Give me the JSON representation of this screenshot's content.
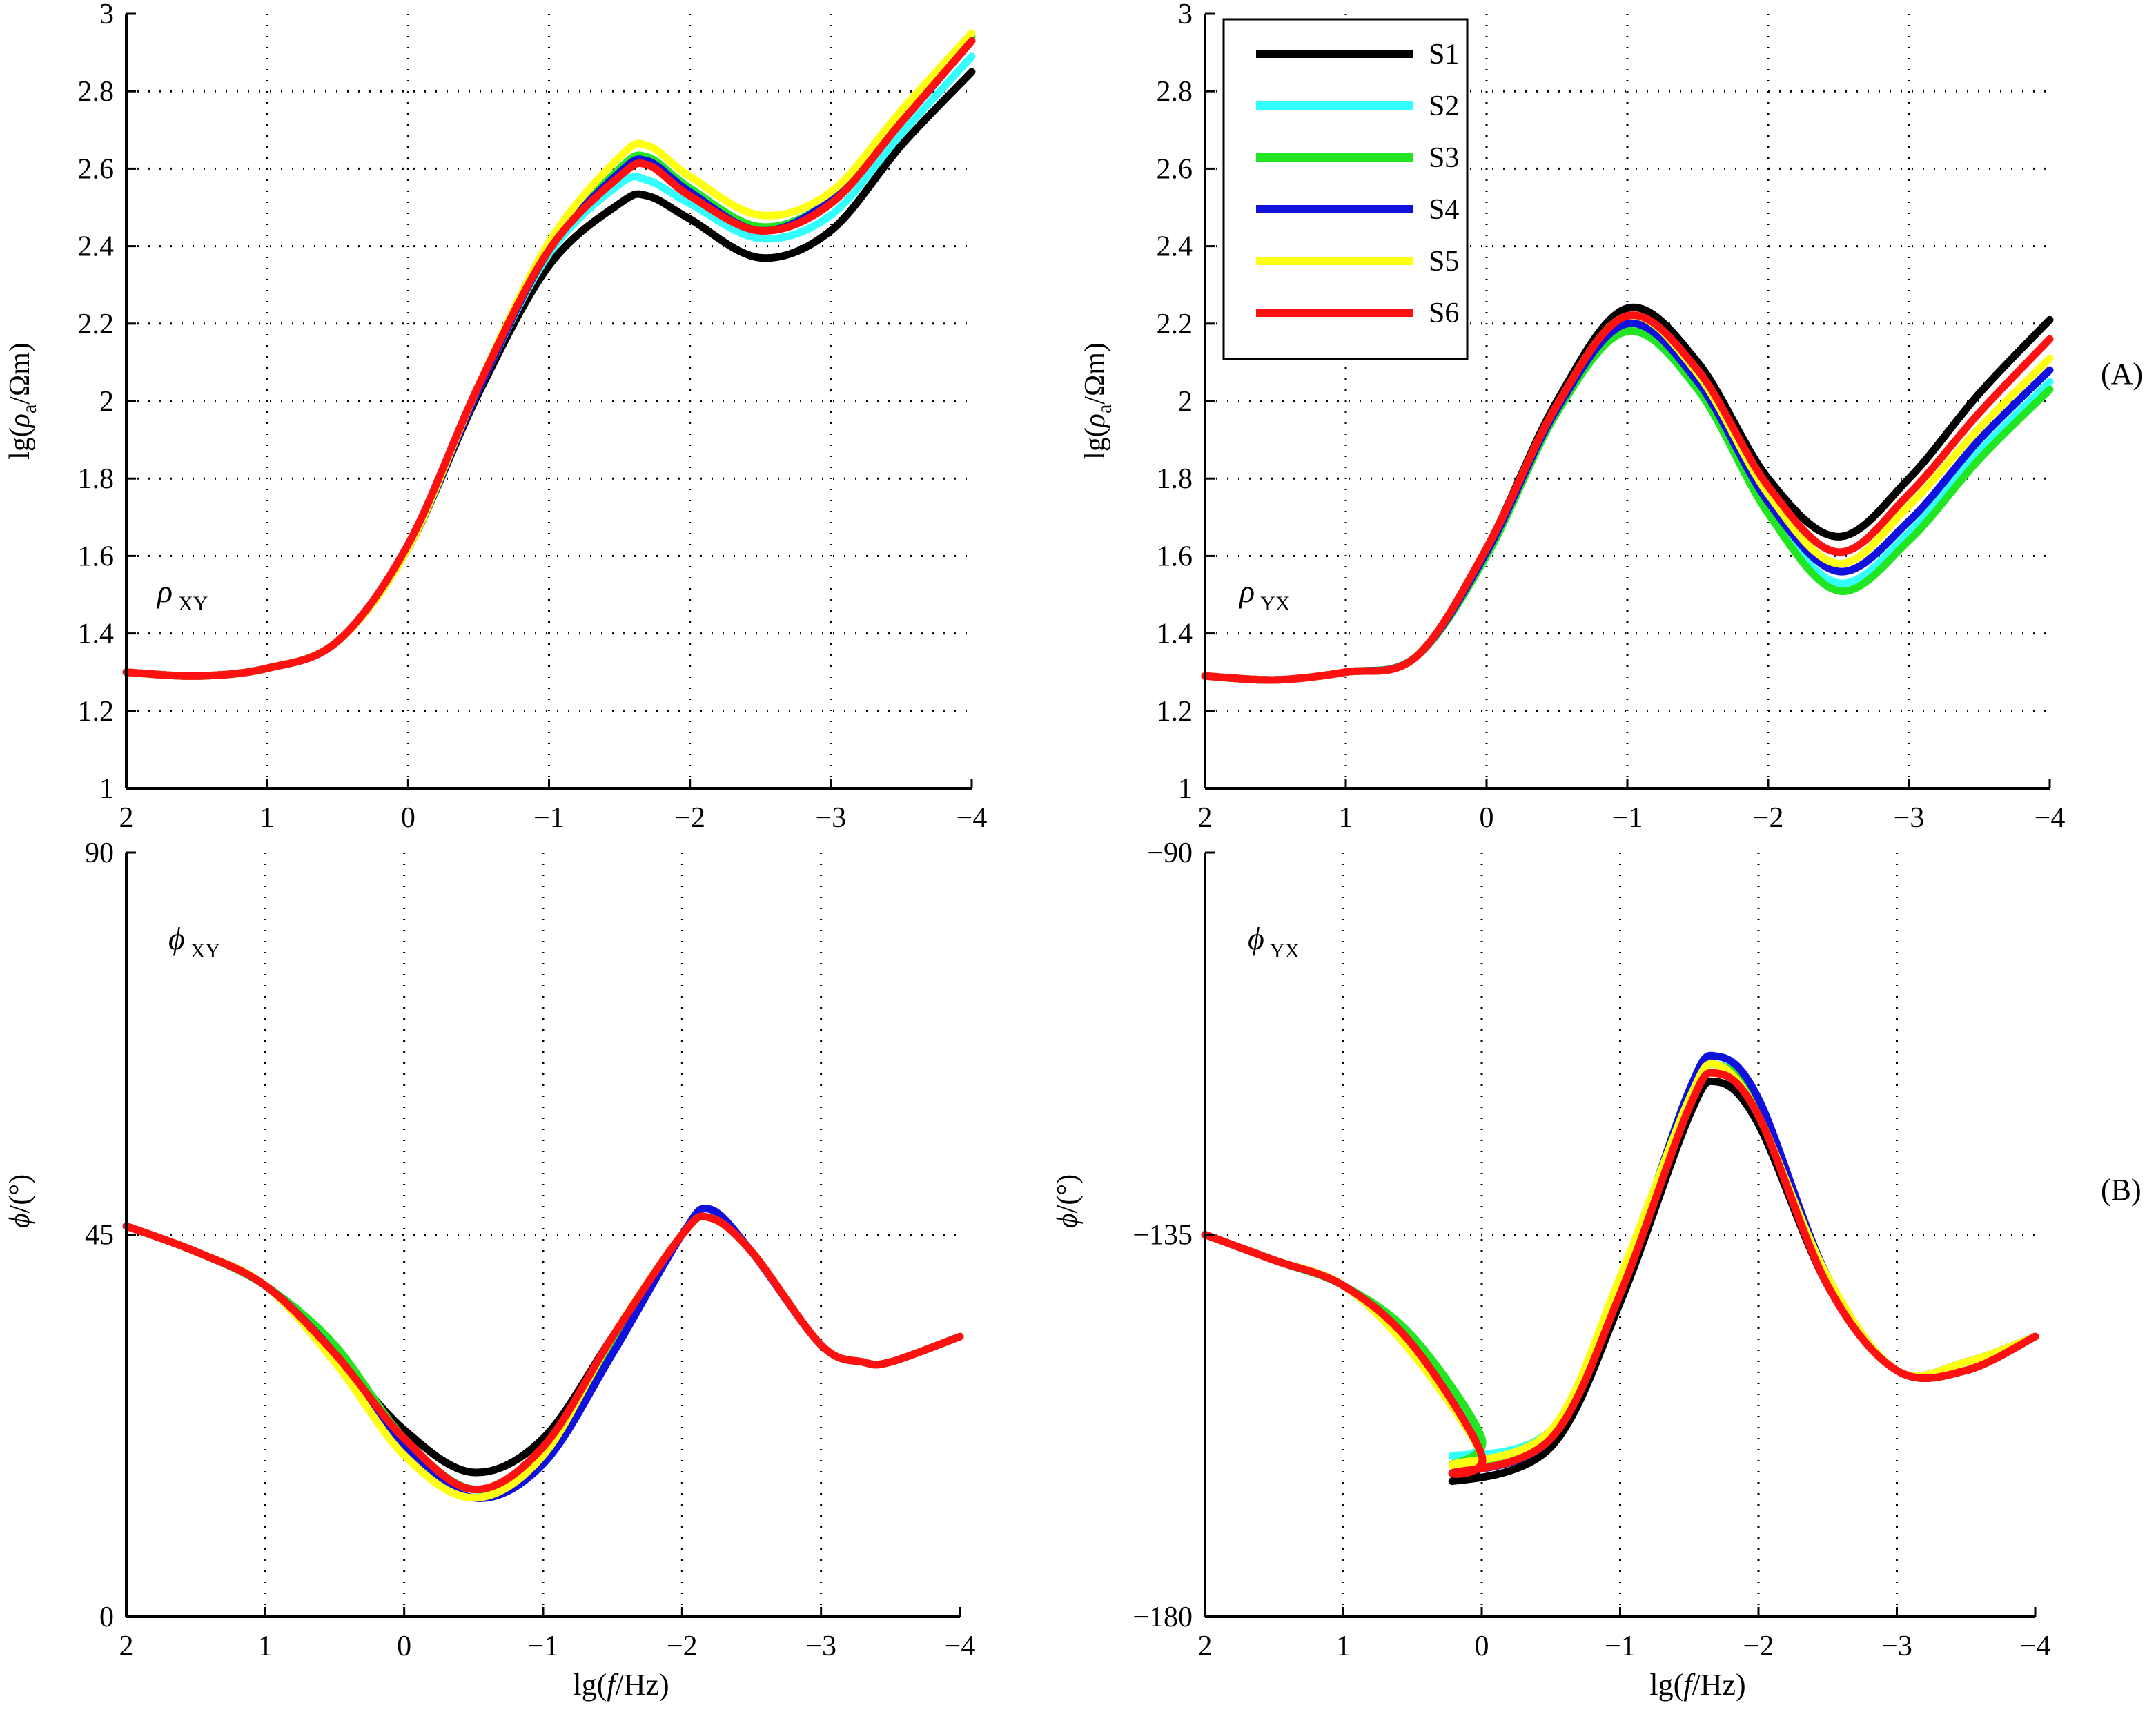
{
  "figure": {
    "panel_labels": {
      "A": "(A)",
      "B": "(B)"
    }
  },
  "colors": {
    "S1": "#000000",
    "S2": "#33ffff",
    "S3": "#22e622",
    "S4": "#1111dd",
    "S5": "#ffff11",
    "S6": "#ff1111"
  },
  "chart_data": [
    {
      "id": "rho_xy",
      "type": "line",
      "plot_label": {
        "symbol": "ρ",
        "sub": "XY"
      },
      "ylabel_parts": [
        "lg(",
        "ρ",
        "a",
        "/Ωm)"
      ],
      "xlabel": "",
      "xlim": [
        2,
        -4
      ],
      "ylim": [
        1,
        3
      ],
      "grid": true,
      "xticks": [
        2,
        1,
        0,
        -1,
        -2,
        -3,
        -4
      ],
      "xtick_labels": [
        "2",
        "1",
        "0",
        "−1",
        "−2",
        "−3",
        "−4"
      ],
      "yticks": [
        1,
        1.2,
        1.4,
        1.6,
        1.8,
        2,
        2.2,
        2.4,
        2.6,
        2.8,
        3
      ],
      "ytick_labels": [
        "1",
        "1.2",
        "1.4",
        "1.6",
        "1.8",
        "2",
        "2.2",
        "2.4",
        "2.6",
        "2.8",
        "3"
      ],
      "x": [
        2,
        1.5,
        1,
        0.5,
        0,
        -0.5,
        -1,
        -1.5,
        -1.7,
        -2,
        -2.5,
        -3,
        -3.5,
        -4
      ],
      "series": [
        {
          "name": "S1",
          "values": [
            1.3,
            1.29,
            1.31,
            1.38,
            1.62,
            2.02,
            2.35,
            2.51,
            2.53,
            2.47,
            2.37,
            2.44,
            2.66,
            2.85
          ]
        },
        {
          "name": "S2",
          "values": [
            1.3,
            1.29,
            1.31,
            1.38,
            1.62,
            2.03,
            2.38,
            2.56,
            2.57,
            2.51,
            2.42,
            2.48,
            2.69,
            2.89
          ]
        },
        {
          "name": "S3",
          "values": [
            1.3,
            1.29,
            1.31,
            1.38,
            1.62,
            2.03,
            2.39,
            2.6,
            2.63,
            2.55,
            2.45,
            2.52,
            2.73,
            2.94
          ]
        },
        {
          "name": "S4",
          "values": [
            1.3,
            1.29,
            1.31,
            1.38,
            1.62,
            2.03,
            2.39,
            2.59,
            2.62,
            2.54,
            2.44,
            2.52,
            2.72,
            2.93
          ]
        },
        {
          "name": "S5",
          "values": [
            1.3,
            1.29,
            1.31,
            1.38,
            1.62,
            2.04,
            2.41,
            2.63,
            2.66,
            2.58,
            2.48,
            2.54,
            2.75,
            2.95
          ]
        },
        {
          "name": "S6",
          "values": [
            1.3,
            1.29,
            1.31,
            1.38,
            1.63,
            2.04,
            2.39,
            2.58,
            2.61,
            2.53,
            2.44,
            2.51,
            2.72,
            2.93
          ]
        }
      ]
    },
    {
      "id": "rho_yx",
      "type": "line",
      "plot_label": {
        "symbol": "ρ",
        "sub": "YX"
      },
      "ylabel_parts": [
        "lg(",
        "ρ",
        "a",
        "/Ωm)"
      ],
      "xlabel": "",
      "xlim": [
        2,
        -4
      ],
      "ylim": [
        1,
        3
      ],
      "grid": true,
      "xticks": [
        2,
        1,
        0,
        -1,
        -2,
        -3,
        -4
      ],
      "xtick_labels": [
        "2",
        "1",
        "0",
        "−1",
        "−2",
        "−3",
        "−4"
      ],
      "yticks": [
        1,
        1.2,
        1.4,
        1.6,
        1.8,
        2,
        2.2,
        2.4,
        2.6,
        2.8,
        3
      ],
      "ytick_labels": [
        "1",
        "1.2",
        "1.4",
        "1.6",
        "1.8",
        "2",
        "2.2",
        "2.4",
        "2.6",
        "2.8",
        "3"
      ],
      "x": [
        2,
        1.5,
        1,
        0.5,
        0,
        -0.5,
        -1,
        -1.5,
        -2,
        -2.5,
        -3,
        -3.5,
        -4
      ],
      "series": [
        {
          "name": "S1",
          "values": [
            1.29,
            1.28,
            1.3,
            1.34,
            1.62,
            2.0,
            2.24,
            2.1,
            1.8,
            1.65,
            1.8,
            2.02,
            2.21
          ]
        },
        {
          "name": "S2",
          "values": [
            1.29,
            1.28,
            1.3,
            1.34,
            1.6,
            1.97,
            2.18,
            2.03,
            1.72,
            1.53,
            1.66,
            1.87,
            2.05
          ]
        },
        {
          "name": "S3",
          "values": [
            1.29,
            1.28,
            1.3,
            1.34,
            1.6,
            1.97,
            2.18,
            2.03,
            1.71,
            1.51,
            1.64,
            1.85,
            2.03
          ]
        },
        {
          "name": "S4",
          "values": [
            1.29,
            1.28,
            1.3,
            1.34,
            1.61,
            1.98,
            2.2,
            2.05,
            1.74,
            1.56,
            1.69,
            1.9,
            2.08
          ]
        },
        {
          "name": "S5",
          "values": [
            1.29,
            1.28,
            1.3,
            1.34,
            1.62,
            1.99,
            2.22,
            2.07,
            1.76,
            1.58,
            1.73,
            1.93,
            2.11
          ]
        },
        {
          "name": "S6",
          "values": [
            1.29,
            1.28,
            1.3,
            1.34,
            1.62,
            1.99,
            2.22,
            2.08,
            1.78,
            1.61,
            1.76,
            1.97,
            2.16
          ]
        }
      ]
    },
    {
      "id": "phi_xy",
      "type": "line",
      "plot_label": {
        "symbol": "ϕ",
        "sub": "XY"
      },
      "ylabel_parts": [
        "ϕ",
        "/(°)"
      ],
      "xlabel": "lg(f/Hz)",
      "xlabel_parts": [
        "lg(",
        "f",
        "/Hz)"
      ],
      "xlim": [
        2,
        -4
      ],
      "ylim": [
        0,
        90
      ],
      "grid": true,
      "xticks": [
        2,
        1,
        0,
        -1,
        -2,
        -3,
        -4
      ],
      "xtick_labels": [
        "2",
        "1",
        "0",
        "−1",
        "−2",
        "−3",
        "−4"
      ],
      "yticks": [
        0,
        45,
        90
      ],
      "ytick_labels": [
        "0",
        "45",
        "90"
      ],
      "x": [
        2,
        1.5,
        1,
        0.5,
        0,
        -0.5,
        -1,
        -1.5,
        -2,
        -2.2,
        -2.5,
        -3,
        -3.3,
        -3.5,
        -4
      ],
      "series": [
        {
          "name": "S1",
          "values": [
            46,
            43,
            39,
            31,
            22,
            17,
            21,
            33,
            45,
            47,
            43,
            32,
            30,
            30,
            33
          ]
        },
        {
          "name": "S2",
          "values": [
            46,
            43,
            39,
            31,
            21,
            15,
            19,
            32,
            45,
            47,
            43,
            32,
            30,
            30,
            33
          ]
        },
        {
          "name": "S3",
          "values": [
            46,
            43,
            39,
            32,
            21,
            15,
            19,
            32,
            45,
            47,
            43,
            32,
            30,
            30,
            33
          ]
        },
        {
          "name": "S4",
          "values": [
            46,
            43,
            39,
            31,
            20,
            14,
            18,
            31,
            45,
            48,
            43,
            32,
            30,
            30,
            33
          ]
        },
        {
          "name": "S5",
          "values": [
            46,
            43,
            39,
            30,
            19,
            14,
            19,
            33,
            45,
            47,
            43,
            32,
            30,
            30,
            33
          ]
        },
        {
          "name": "S6",
          "values": [
            46,
            43,
            39,
            31,
            21,
            15,
            20,
            33,
            45,
            47,
            43,
            32,
            30,
            30,
            33
          ]
        }
      ]
    },
    {
      "id": "phi_yx",
      "type": "line",
      "plot_label": {
        "symbol": "ϕ",
        "sub": "YX"
      },
      "ylabel_parts": [
        "ϕ",
        "/(°)"
      ],
      "xlabel": "lg(f/Hz)",
      "xlabel_parts": [
        "lg(",
        "f",
        "/Hz)"
      ],
      "xlim": [
        2,
        -4
      ],
      "ylim": [
        -180,
        -90
      ],
      "grid": true,
      "xticks": [
        2,
        1,
        0,
        -1,
        -2,
        -3,
        -4
      ],
      "xtick_labels": [
        "2",
        "1",
        "0",
        "−1",
        "−2",
        "−3",
        "−4"
      ],
      "yticks": [
        -180,
        -135,
        -90
      ],
      "ytick_labels": [
        "−180",
        "−135",
        "−90"
      ],
      "x": [
        2,
        1.5,
        1,
        0.5,
        0,
        0.2,
        -0.5,
        -1,
        -1.5,
        -1.7,
        -2,
        -2.5,
        -3,
        -3.5,
        -4
      ],
      "series": [
        {
          "name": "S1",
          "values": [
            -135,
            -138,
            -141,
            -148,
            -161,
            -164,
            -160,
            -143,
            -121,
            -117,
            -122,
            -141,
            -151,
            -151,
            -147
          ]
        },
        {
          "name": "S2",
          "values": [
            -135,
            -138,
            -141,
            -147,
            -159,
            -161,
            -158,
            -141,
            -119,
            -115,
            -120,
            -140,
            -151,
            -150,
            -147
          ]
        },
        {
          "name": "S3",
          "values": [
            -135,
            -138,
            -141,
            -147,
            -159,
            -162,
            -158,
            -141,
            -118,
            -115,
            -120,
            -140,
            -151,
            -150,
            -147
          ]
        },
        {
          "name": "S4",
          "values": [
            -135,
            -138,
            -141,
            -148,
            -161,
            -163,
            -159,
            -141,
            -118,
            -114,
            -119,
            -140,
            -151,
            -150,
            -147
          ]
        },
        {
          "name": "S5",
          "values": [
            -135,
            -138,
            -141,
            -149,
            -161,
            -162,
            -158,
            -140,
            -119,
            -115,
            -121,
            -140,
            -151,
            -150,
            -147
          ]
        },
        {
          "name": "S6",
          "values": [
            -135,
            -138,
            -141,
            -148,
            -161,
            -163,
            -159,
            -142,
            -120,
            -116,
            -121,
            -141,
            -151,
            -151,
            -147
          ]
        }
      ]
    }
  ],
  "legend": {
    "position": "top-left of top-right panel",
    "entries": [
      "S1",
      "S2",
      "S3",
      "S4",
      "S5",
      "S6"
    ]
  }
}
